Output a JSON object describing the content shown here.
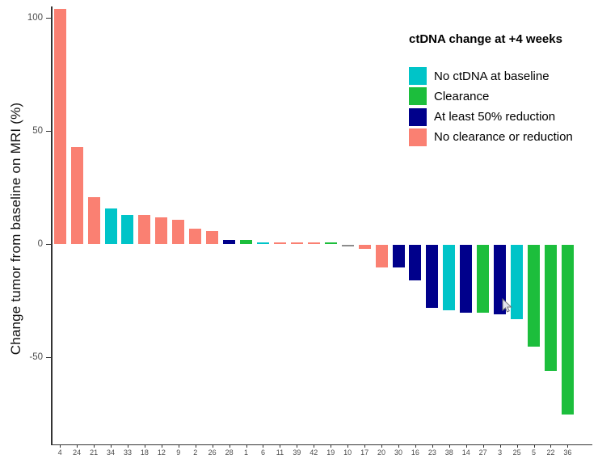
{
  "chart_data": {
    "type": "bar",
    "title": "",
    "xlabel": "",
    "ylabel": "Change tumor from baseline on MRI (%)",
    "ylim": [
      -88,
      106
    ],
    "y_ticks": [
      100,
      50,
      0,
      -50
    ],
    "grid": false,
    "categories": [
      "4",
      "24",
      "21",
      "34",
      "33",
      "18",
      "12",
      "9",
      "2",
      "26",
      "28",
      "1",
      "6",
      "11",
      "39",
      "42",
      "19",
      "10",
      "17",
      "20",
      "30",
      "16",
      "23",
      "38",
      "14",
      "27",
      "3",
      "25",
      "5",
      "22",
      "36"
    ],
    "values": [
      104,
      43,
      21,
      16,
      13,
      13,
      12,
      11,
      7,
      6,
      2,
      2,
      1,
      1,
      1,
      1,
      1,
      -1,
      -2,
      -10,
      -10,
      -16,
      -28,
      -29,
      -30,
      -30,
      -31,
      -33,
      -45,
      -56,
      -75
    ],
    "bar_groups": [
      "no_clearance",
      "no_clearance",
      "no_clearance",
      "no_ctdna",
      "no_ctdna",
      "no_clearance",
      "no_clearance",
      "no_clearance",
      "no_clearance",
      "no_clearance",
      "reduction_50",
      "clearance",
      "no_ctdna",
      "no_clearance",
      "no_clearance",
      "no_clearance",
      "clearance",
      "na",
      "no_clearance",
      "no_clearance",
      "reduction_50",
      "reduction_50",
      "reduction_50",
      "no_ctdna",
      "reduction_50",
      "clearance",
      "reduction_50",
      "no_ctdna",
      "clearance",
      "clearance",
      "clearance"
    ],
    "group_colors": {
      "no_ctdna": "#00C4C8",
      "clearance": "#1CBE3C",
      "reduction_50": "#00008B",
      "no_clearance": "#FA8072",
      "na": "#8C8C8C"
    },
    "legend": {
      "title": "ctDNA change at +4 weeks",
      "position": "top-right",
      "items": [
        {
          "label": "No ctDNA at baseline",
          "group": "no_ctdna"
        },
        {
          "label": "Clearance",
          "group": "clearance"
        },
        {
          "label": "At least 50% reduction",
          "group": "reduction_50"
        },
        {
          "label": "No clearance or reduction",
          "group": "no_clearance"
        }
      ]
    }
  }
}
